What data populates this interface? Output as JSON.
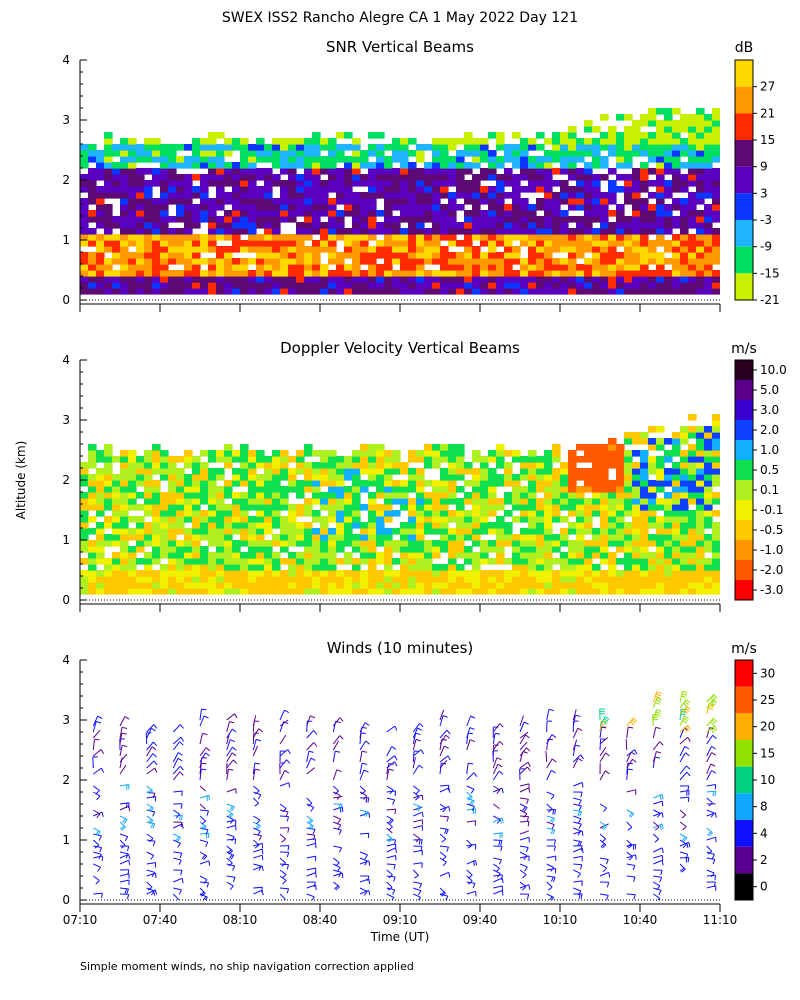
{
  "figure_title": "SWEX ISS2 Rancho Alegre CA    1 May 2022 Day 121",
  "footnote": "Simple moment winds, no ship navigation correction applied",
  "y_axis_label": "Altitude (km)",
  "x_axis_label": "Time (UT)",
  "x_ticks": [
    "07:10",
    "07:40",
    "08:10",
    "08:40",
    "09:10",
    "09:40",
    "10:10",
    "10:40",
    "11:10"
  ],
  "y_ticks": [
    "0",
    "1",
    "2",
    "3",
    "4"
  ],
  "chart_data": [
    {
      "type": "heatmap",
      "title": "SNR Vertical Beams",
      "xlabel": "Time (UT)",
      "ylabel": "Altitude (km)",
      "xlim": [
        "07:10",
        "11:10"
      ],
      "ylim": [
        0,
        4
      ],
      "colorbar": {
        "unit": "dB",
        "labels": [
          "27",
          "21",
          "15",
          "9",
          "3",
          "-3",
          "-9",
          "-15",
          "-21"
        ],
        "colors": [
          "#ffd800",
          "#ff9a00",
          "#ff2a00",
          "#5e0a75",
          "#5a00bf",
          "#0c36ff",
          "#1eb4ff",
          "#00e060",
          "#c8f000"
        ]
      },
      "description_layers": [
        {
          "alt_km": [
            0.1,
            0.45
          ],
          "snr_db": 9
        },
        {
          "alt_km": [
            0.45,
            1.1
          ],
          "snr_db": 24
        },
        {
          "alt_km": [
            1.1,
            2.2
          ],
          "snr_db": 9
        },
        {
          "alt_km": [
            2.2,
            2.6
          ],
          "snr_db": -9
        },
        {
          "alt_km": [
            2.6,
            3.2
          ],
          "snr_db": -18
        }
      ]
    },
    {
      "type": "heatmap",
      "title": "Doppler Velocity Vertical Beams",
      "xlabel": "Time (UT)",
      "ylabel": "Altitude (km)",
      "xlim": [
        "07:10",
        "11:10"
      ],
      "ylim": [
        0,
        4
      ],
      "colorbar": {
        "unit": "m/s",
        "labels": [
          "10.0",
          "5.0",
          "3.0",
          "2.0",
          "1.0",
          "0.5",
          "0.1",
          "-0.1",
          "-0.5",
          "-1.0",
          "-2.0",
          "-3.0"
        ],
        "colors": [
          "#2a0020",
          "#5a008c",
          "#3a00d0",
          "#1040ff",
          "#10b0ff",
          "#10e050",
          "#b0f020",
          "#f0f000",
          "#ffc800",
          "#ff9600",
          "#ff5a00",
          "#ff0000"
        ]
      },
      "description_values": {
        "near_surface": -0.1,
        "mid_level": 0.3,
        "late_upper_event": -1.5
      }
    },
    {
      "type": "wind_barbs",
      "title": "Winds (10 minutes)",
      "xlabel": "Time (UT)",
      "ylabel": "Altitude (km)",
      "xlim": [
        "07:10",
        "11:10"
      ],
      "ylim": [
        0,
        4
      ],
      "colorbar": {
        "unit": "m/s",
        "labels": [
          "30",
          "25",
          "20",
          "15",
          "10",
          "8",
          "4",
          "2",
          "0"
        ],
        "colors": [
          "#ff0000",
          "#ff5a00",
          "#ffb000",
          "#90e000",
          "#00d080",
          "#10a8ff",
          "#1010ff",
          "#5a0090",
          "#000000"
        ]
      },
      "typical_speed_ms": {
        "below_1km": 6,
        "1_to_2km": 5,
        "above_2km": 4,
        "upper_late": 18
      }
    }
  ]
}
